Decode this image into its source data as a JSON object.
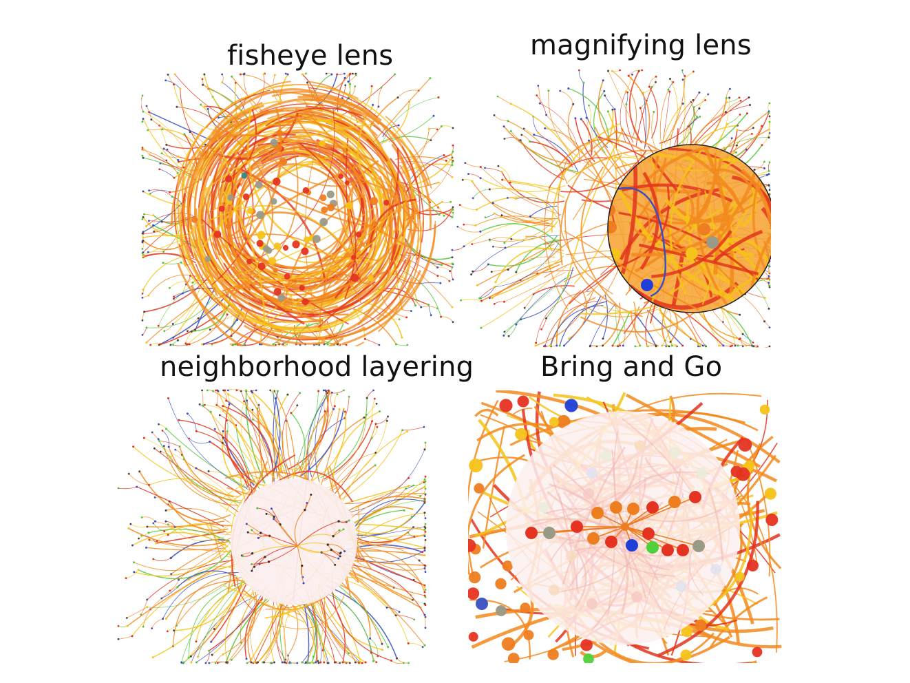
{
  "panels": [
    {
      "id": "fisheye",
      "title": "fisheye lens"
    },
    {
      "id": "magnify",
      "title": "magnifying lens"
    },
    {
      "id": "layering",
      "title": "neighborhood layering"
    },
    {
      "id": "bringgo",
      "title": "Bring and Go"
    }
  ],
  "colors": {
    "edge_orange": "#f28a1e",
    "edge_red": "#e2341d",
    "edge_yellow": "#f6c31a",
    "edge_blue": "#3a4fc2",
    "edge_green": "#52c73a",
    "node_red": "#e53322",
    "node_orange": "#ee7d1f",
    "node_blue": "#1f3fd8",
    "node_green": "#4fd13b",
    "node_gray": "#9a9a88",
    "lens_outline": "#222222"
  }
}
